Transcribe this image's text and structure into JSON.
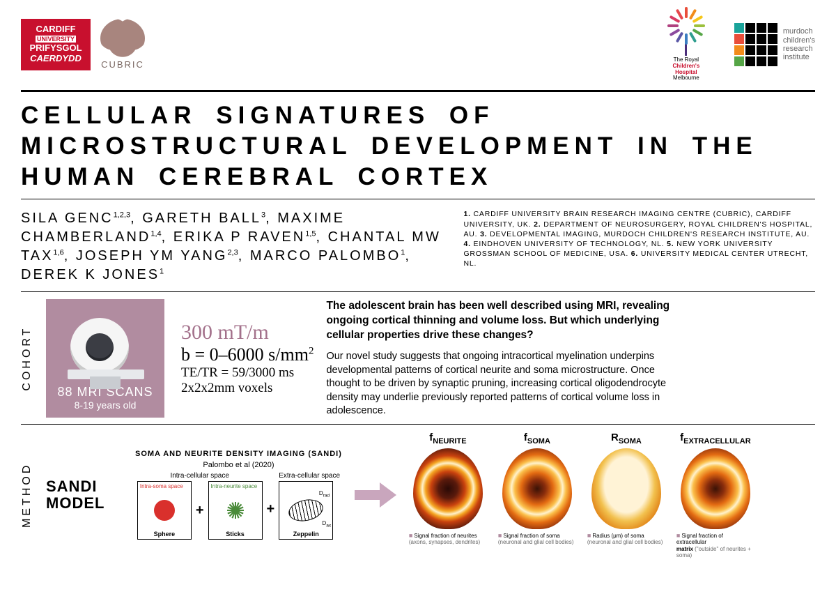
{
  "logos": {
    "cardiff_top": "CARDIFF",
    "cardiff_uni": "UNIVERSITY",
    "cardiff_cy1": "PRIFYSGOL",
    "cardiff_cy2": "CAERDYDD",
    "cubric": "CUBRIC",
    "rch_line1": "The Royal",
    "rch_line2": "Children's",
    "rch_line3": "Hospital",
    "rch_line4": "Melbourne",
    "mcri_line1": "murdoch",
    "mcri_line2": "children's",
    "mcri_line3": "research",
    "mcri_line4": "institute",
    "burst_colors": [
      "#e94e3a",
      "#f28c1b",
      "#f6c71b",
      "#9cc03c",
      "#55a546",
      "#2f9e8f",
      "#3b7ec1",
      "#5a57a6",
      "#8b4a9e",
      "#b0417f",
      "#d83b63",
      "#e7484c"
    ],
    "mcri_cells": [
      "#1aa39a",
      "#000",
      "#000",
      "#000",
      "#e94e3a",
      "#000",
      "#000",
      "#000",
      "#f28c1b",
      "#000",
      "#000",
      "#000",
      "#55a546",
      "#000",
      "#000",
      "#000"
    ]
  },
  "title": "CELLULAR SIGNATURES OF MICROSTRUCTURAL DEVELOPMENT IN THE HUMAN CEREBRAL CORTEX",
  "authors_html": "SILA GENC<sup>1,2,3</sup>, GARETH BALL<sup>3</sup>, MAXIME CHAMBERLAND<sup>1,4</sup>, ERIKA P RAVEN<sup>1,5</sup>, CHANTAL MW TAX<sup>1,6</sup>, JOSEPH YM YANG<sup>2,3</sup>, MARCO PALOMBO<sup>1</sup>, DEREK K JONES<sup>1</sup>",
  "affiliations_html": "<b>1.</b> CARDIFF UNIVERSITY BRAIN RESEARCH IMAGING CENTRE (CUBRIC), CARDIFF UNIVERSITY, UK. <b>2.</b> DEPARTMENT OF NEUROSURGERY, ROYAL CHILDREN'S HOSPITAL, AU. <b>3.</b> DEVELOPMENTAL IMAGING, MURDOCH CHILDREN'S RESEARCH INSTITUTE, AU. <b>4.</b> EINDHOVEN UNIVERSITY OF TECHNOLOGY, NL. <b>5.</b> NEW YORK UNIVERSITY GROSSMAN SCHOOL OF MEDICINE, USA. <b>6.</b> UNIVERSITY MEDICAL CENTER UTRECHT, NL.",
  "sections": {
    "cohort_label": "COHORT",
    "method_label": "METHOD"
  },
  "cohort": {
    "scan_count": "88 MRI SCANS",
    "age_range": "8-19 years old",
    "gradient": "300 mT/m",
    "bvalue_html": "b = 0–6000 s/mm<sup>2</sup>",
    "te_tr": "TE/TR = 59/3000 ms",
    "voxels": "2x2x2mm voxels",
    "card_bg": "#b18ca0",
    "grad_color": "#a3718b"
  },
  "abstract": {
    "lead": "The adolescent brain has been well described using MRI, revealing ongoing cortical thinning and volume loss. But which underlying cellular properties drive these changes?",
    "body": "Our novel study suggests that ongoing intracortical myelination underpins developmental patterns of cortical neurite and soma microstructure. Once thought to be driven by synaptic pruning, increasing cortical oligodendrocyte density may underlie previously reported patterns of cortical volume loss in adolescence."
  },
  "method": {
    "model_name_l1": "SANDI",
    "model_name_l2": "MODEL",
    "sandi_title": "SOMA AND NEURITE DENSITY IMAGING (SANDI)",
    "sandi_cite": "Palombo et al (2020)",
    "intra_hdr": "Intra-cellular space",
    "extra_hdr": "Extra-cellular space",
    "intra_soma_lbl": "Intra-soma space",
    "intra_neurite_lbl": "Intra-neurite space",
    "sphere_lbl": "Sphere",
    "sticks_lbl": "Sticks",
    "zeppelin_lbl": "Zeppelin",
    "drad": "D_rad",
    "dax": "D_ax",
    "arrow_color": "#c9a6bd"
  },
  "maps": [
    {
      "name_html": "f<sub>NEURITE</sub>",
      "class": "bm-dark",
      "desc_html": "<span class=\"sq\">■</span>Signal fraction of neurites<br><span class=\"b\">(axons, synapses, dendrites)</span>"
    },
    {
      "name_html": "f<sub>SOMA</sub>",
      "class": "bm-mid",
      "desc_html": "<span class=\"sq\">■</span>Signal fraction of soma<br><span class=\"b\">(neuronal and glial cell bodies)</span>"
    },
    {
      "name_html": "R<sub>SOMA</sub>",
      "class": "bm-light",
      "desc_html": "<span class=\"sq\">■</span>Radius (μm) of soma<br><span class=\"b\">(neuronal and glial cell bodies)</span>"
    },
    {
      "name_html": "f<sub>EXTRACELLULAR</sub>",
      "class": "bm-mid",
      "desc_html": "<span class=\"sq\">■</span>Signal fraction of extracellular<br><b>matrix</b> <span class=\"b\">(\"outside\" of neurites + soma)</span>"
    }
  ]
}
